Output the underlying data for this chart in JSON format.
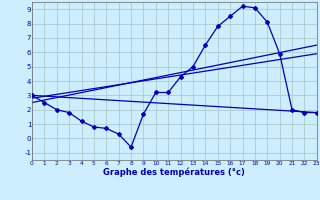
{
  "xlabel": "Graphe des températures (°c)",
  "x_ticks": [
    0,
    1,
    2,
    3,
    4,
    5,
    6,
    7,
    8,
    9,
    10,
    11,
    12,
    13,
    14,
    15,
    16,
    17,
    18,
    19,
    20,
    21,
    22,
    23
  ],
  "y_ticks": [
    -1,
    0,
    1,
    2,
    3,
    4,
    5,
    6,
    7,
    8,
    9
  ],
  "xlim": [
    0,
    23
  ],
  "ylim": [
    -1.5,
    9.5
  ],
  "background_color": "#cceeff",
  "grid_color": "#aacccc",
  "line_color": "#0000bb",
  "line1_x": [
    0,
    1,
    2,
    3,
    4,
    5,
    6,
    7,
    8,
    9,
    10,
    11,
    12,
    13,
    14,
    15,
    16,
    17,
    18,
    19,
    20,
    21,
    22,
    23
  ],
  "line1_y": [
    3.0,
    2.5,
    2.0,
    1.8,
    1.2,
    0.8,
    0.7,
    0.3,
    -0.6,
    1.7,
    3.2,
    3.2,
    4.3,
    5.0,
    6.5,
    7.8,
    8.5,
    9.2,
    9.1,
    8.1,
    5.9,
    2.0,
    1.8,
    1.8
  ],
  "line2_x": [
    0,
    23
  ],
  "line2_y": [
    3.0,
    1.8
  ],
  "line3_x": [
    0,
    23
  ],
  "line3_y": [
    2.5,
    6.5
  ],
  "line4_x": [
    0,
    23
  ],
  "line4_y": [
    2.8,
    5.9
  ]
}
